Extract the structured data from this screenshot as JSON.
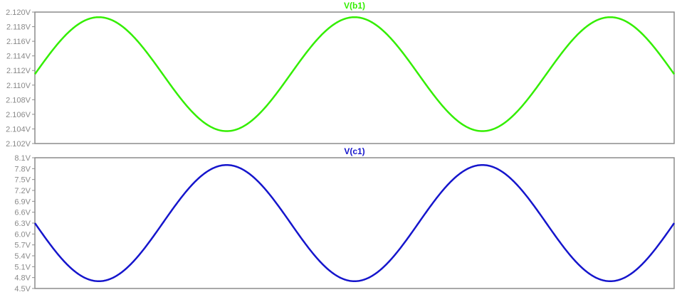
{
  "chart_data": [
    {
      "type": "line",
      "title": "V(b1)",
      "color": "#33ee00",
      "series": [
        {
          "name": "V(b1)",
          "color": "#33ee00",
          "offset": 2.1115,
          "amplitude": 0.0078,
          "cycles": 2.5,
          "phase_deg": 0
        }
      ],
      "ylim": [
        2.102,
        2.12
      ],
      "yticks": [
        2.12,
        2.118,
        2.116,
        2.114,
        2.112,
        2.11,
        2.108,
        2.106,
        2.104,
        2.102
      ],
      "ytick_labels": [
        "2.120V",
        "2.118V",
        "2.116V",
        "2.114V",
        "2.112V",
        "2.110V",
        "2.108V",
        "2.106V",
        "2.104V",
        "2.102V"
      ],
      "xlim": [
        0,
        1
      ],
      "grid": false
    },
    {
      "type": "line",
      "title": "V(c1)",
      "color": "#1515cc",
      "series": [
        {
          "name": "V(c1)",
          "color": "#1515cc",
          "offset": 6.3,
          "amplitude": 1.6,
          "cycles": 2.5,
          "phase_deg": 180
        }
      ],
      "ylim": [
        4.5,
        8.1
      ],
      "yticks": [
        8.1,
        7.8,
        7.5,
        7.2,
        6.9,
        6.6,
        6.3,
        6.0,
        5.7,
        5.4,
        5.1,
        4.8,
        4.5
      ],
      "ytick_labels": [
        "8.1V",
        "7.8V",
        "7.5V",
        "7.2V",
        "6.9V",
        "6.6V",
        "6.3V",
        "6.0V",
        "5.7V",
        "5.4V",
        "5.1V",
        "4.8V",
        "4.5V"
      ],
      "xlim": [
        0,
        1
      ],
      "grid": false
    }
  ]
}
